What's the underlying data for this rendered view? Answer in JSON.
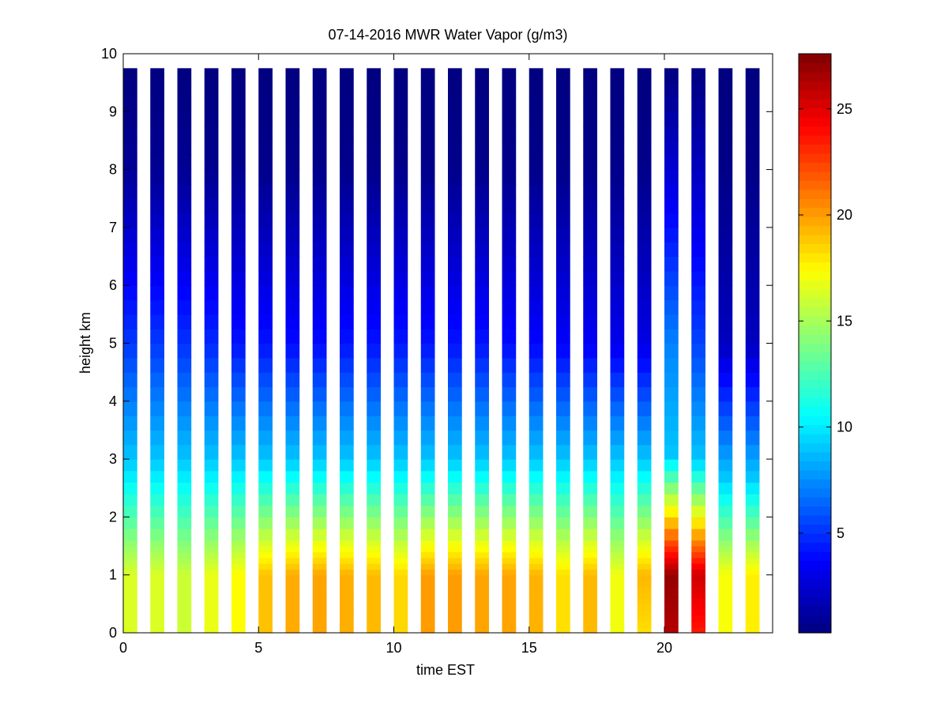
{
  "chart_data": {
    "type": "heatmap",
    "title": "07-14-2016 MWR Water Vapor (g/m3)",
    "xlabel": "time EST",
    "ylabel": "height km",
    "xlim": [
      0,
      24
    ],
    "ylim": [
      0,
      10
    ],
    "x_ticks": [
      0,
      5,
      10,
      15,
      20
    ],
    "y_ticks": [
      0,
      1,
      2,
      3,
      4,
      5,
      6,
      7,
      8,
      9,
      10
    ],
    "colorbar": {
      "colormap": "jet",
      "range": [
        0.3,
        27.6
      ],
      "ticks": [
        5,
        10,
        15,
        20,
        25
      ]
    },
    "grid": false,
    "z_units": "g/m3",
    "z_max_km": 9.75,
    "time_hours": [
      0,
      1,
      2,
      3,
      4,
      5,
      6,
      7,
      8,
      9,
      10,
      11,
      12,
      13,
      14,
      15,
      16,
      17,
      18,
      19,
      20,
      21,
      22,
      23
    ],
    "height_km": [
      0.0,
      0.1,
      0.2,
      0.3,
      0.4,
      0.5,
      0.6,
      0.7,
      0.8,
      0.9,
      1.0,
      1.1,
      1.2,
      1.3,
      1.4,
      1.5,
      1.6,
      1.8,
      2.0,
      2.2,
      2.4,
      2.6,
      2.8,
      3.0,
      3.25,
      3.5,
      3.75,
      4.0,
      4.25,
      4.5,
      4.75,
      5.0,
      5.25,
      5.5,
      5.75,
      6.0,
      6.25,
      6.5,
      6.75,
      7.0,
      7.25,
      7.5,
      7.75,
      8.0,
      8.25,
      8.5,
      8.75,
      9.0,
      9.25,
      9.5,
      9.75
    ],
    "surface_vapor": [
      16.4,
      16.4,
      16.0,
      16.8,
      17.4,
      19.0,
      19.6,
      19.8,
      19.5,
      19.2,
      18.4,
      20.0,
      20.0,
      19.8,
      19.8,
      19.4,
      18.2,
      19.2,
      17.0,
      18.2,
      26.2,
      23.5,
      17.2,
      17.8
    ],
    "peak_vapor": [
      16.4,
      16.4,
      16.0,
      16.8,
      17.4,
      19.0,
      19.6,
      19.8,
      19.5,
      19.2,
      18.4,
      20.0,
      20.0,
      19.8,
      19.8,
      19.4,
      18.2,
      19.2,
      17.0,
      19.3,
      27.0,
      25.5,
      17.2,
      17.8
    ],
    "moist_layer_top_km": [
      3.0,
      3.0,
      3.0,
      3.0,
      3.0,
      3.0,
      3.0,
      3.0,
      3.0,
      3.0,
      3.0,
      3.0,
      3.0,
      3.0,
      3.0,
      3.0,
      3.0,
      3.0,
      3.0,
      3.0,
      3.1,
      3.0,
      2.7,
      2.7
    ],
    "vapor_at_5km": [
      5.2,
      5.2,
      5.0,
      4.8,
      4.2,
      4.2,
      4.0,
      4.0,
      4.2,
      4.2,
      4.3,
      4.2,
      4.2,
      4.2,
      4.0,
      3.8,
      3.6,
      3.5,
      3.2,
      3.0,
      7.2,
      5.5,
      2.0,
      2.0
    ],
    "vapor_at_8km": [
      0.9,
      0.8,
      0.8,
      0.7,
      0.7,
      0.6,
      0.6,
      0.6,
      0.6,
      0.6,
      0.6,
      0.6,
      0.6,
      0.6,
      0.6,
      0.6,
      0.6,
      0.6,
      0.6,
      0.6,
      2.5,
      2.0,
      0.5,
      0.5
    ]
  }
}
